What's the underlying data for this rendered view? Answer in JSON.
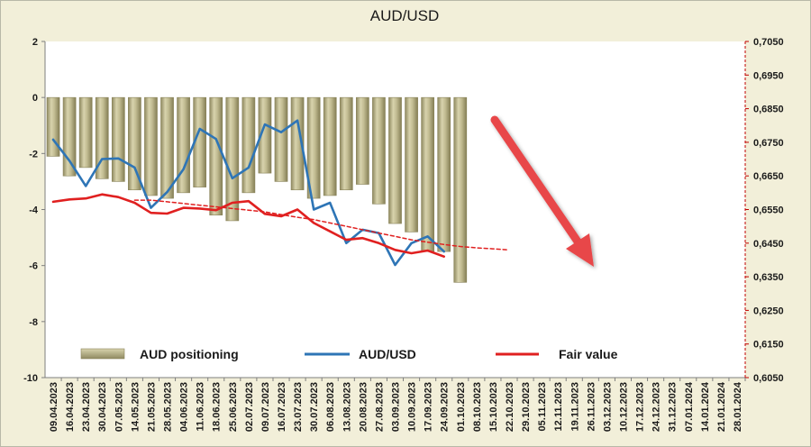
{
  "chart_data": {
    "type": "bar",
    "title": "AUD/USD",
    "x_dates": [
      "09.04.2023",
      "16.04.2023",
      "23.04.2023",
      "30.04.2023",
      "07.05.2023",
      "14.05.2023",
      "21.05.2023",
      "28.05.2023",
      "04.06.2023",
      "11.06.2023",
      "18.06.2023",
      "25.06.2023",
      "02.07.2023",
      "09.07.2023",
      "16.07.2023",
      "23.07.2023",
      "30.07.2023",
      "06.08.2023",
      "13.08.2023",
      "20.08.2023",
      "27.08.2023",
      "03.09.2023",
      "10.09.2023",
      "17.09.2023",
      "24.09.2023",
      "01.10.2023",
      "08.10.2023",
      "15.10.2023",
      "22.10.2023",
      "29.10.2023",
      "05.11.2023",
      "12.11.2023",
      "19.11.2023",
      "26.11.2023",
      "03.12.2023",
      "10.12.2023",
      "17.12.2023",
      "24.12.2023",
      "31.12.2023",
      "07.01.2024",
      "14.01.2024",
      "21.01.2024",
      "28.01.2024"
    ],
    "left_axis": {
      "ylim": [
        -10,
        2
      ],
      "ticks": [
        2,
        0,
        -2,
        -4,
        -6,
        -8,
        -10
      ]
    },
    "right_axis": {
      "ylim": [
        0.605,
        0.705
      ],
      "ticks": [
        "0,7050",
        "0,6950",
        "0,6850",
        "0,6750",
        "0,6650",
        "0,6550",
        "0,6450",
        "0,6350",
        "0,6250",
        "0,6150",
        "0,6050"
      ]
    },
    "series": [
      {
        "name": "AUD positioning",
        "type": "bar",
        "axis": "left",
        "color": "#b0aa7e",
        "values": [
          -2.1,
          -2.8,
          -2.5,
          -2.9,
          -3.0,
          -3.3,
          -3.5,
          -3.6,
          -3.4,
          -3.2,
          -4.2,
          -4.4,
          -3.4,
          -2.7,
          -3.0,
          -3.3,
          -3.6,
          -3.5,
          -3.3,
          -3.1,
          -3.8,
          -4.5,
          -4.8,
          -5.5,
          -5.5,
          -6.6
        ]
      },
      {
        "name": "AUD/USD",
        "type": "line",
        "axis": "right",
        "color": "#2e75b6",
        "values": [
          0.6758,
          0.6695,
          0.662,
          0.67,
          0.6702,
          0.6675,
          0.6555,
          0.6602,
          0.667,
          0.679,
          0.676,
          0.6643,
          0.6675,
          0.6803,
          0.678,
          0.6815,
          0.655,
          0.657,
          0.645,
          0.649,
          0.648,
          0.6385,
          0.645,
          0.647,
          0.6425
        ]
      },
      {
        "name": "Fair value",
        "type": "line",
        "axis": "right",
        "color": "#e02020",
        "values": [
          0.6573,
          0.658,
          0.6583,
          0.6595,
          0.6587,
          0.657,
          0.654,
          0.6538,
          0.6555,
          0.6553,
          0.6548,
          0.657,
          0.6575,
          0.6537,
          0.653,
          0.655,
          0.651,
          0.6485,
          0.646,
          0.6465,
          0.645,
          0.643,
          0.642,
          0.6428,
          0.641
        ]
      },
      {
        "name": "",
        "type": "line-dashed",
        "axis": "right",
        "color": "#e02020",
        "values": [
          null,
          null,
          null,
          null,
          null,
          0.6578,
          0.6578,
          0.6573,
          0.6568,
          0.6563,
          0.6558,
          0.6553,
          0.6548,
          0.6543,
          0.6535,
          0.6527,
          0.652,
          0.651,
          0.65,
          0.649,
          0.648,
          0.647,
          0.646,
          0.6453,
          0.6446,
          0.644,
          0.6436,
          0.6433,
          0.643
        ]
      }
    ],
    "legend": {
      "position": "bottom-inside"
    },
    "grid": false,
    "annotation": {
      "type": "arrow",
      "direction": "down-right",
      "color": "#e8474a"
    }
  }
}
